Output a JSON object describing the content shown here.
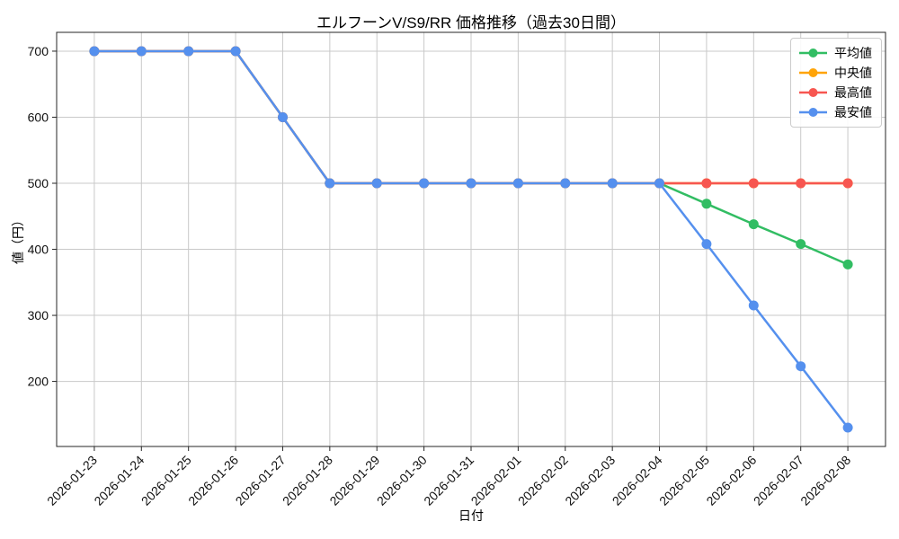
{
  "chart_data": {
    "type": "line",
    "title": "エルフーンV/S9/RR 価格推移（過去30日間）",
    "xlabel": "日付",
    "ylabel": "値（円）",
    "x": [
      "2026-01-23",
      "2026-01-24",
      "2026-01-25",
      "2026-01-26",
      "2026-01-27",
      "2026-01-28",
      "2026-01-29",
      "2026-01-30",
      "2026-01-31",
      "2026-02-01",
      "2026-02-02",
      "2026-02-03",
      "2026-02-04",
      "2026-02-05",
      "2026-02-06",
      "2026-02-07",
      "2026-02-08"
    ],
    "series": [
      {
        "key": "average",
        "name": "平均値",
        "color": "#32bd63",
        "values": [
          700,
          700,
          700,
          700,
          600,
          500,
          500,
          500,
          500,
          500,
          500,
          500,
          500,
          469,
          438,
          408,
          377
        ]
      },
      {
        "key": "median",
        "name": "中央値",
        "color": "#ffa408",
        "values": [
          700,
          700,
          700,
          700,
          600,
          500,
          500,
          500,
          500,
          500,
          500,
          500,
          500,
          500,
          500,
          500,
          500
        ]
      },
      {
        "key": "max",
        "name": "最高値",
        "color": "#f75650",
        "values": [
          700,
          700,
          700,
          700,
          600,
          500,
          500,
          500,
          500,
          500,
          500,
          500,
          500,
          500,
          500,
          500,
          500
        ]
      },
      {
        "key": "min",
        "name": "最安値",
        "color": "#5590ee",
        "values": [
          700,
          700,
          700,
          700,
          600,
          500,
          500,
          500,
          500,
          500,
          500,
          500,
          500,
          408,
          315,
          223,
          130
        ]
      }
    ],
    "y_ticks": [
      200,
      300,
      400,
      500,
      600,
      700
    ],
    "ylim": [
      101.5,
      728.5
    ],
    "grid": true,
    "legend_position": "upper right",
    "marker": "circle",
    "colors": {
      "grid": "#c9c9c9",
      "spine": "#262626",
      "tick_text": "#111111",
      "background": "#ffffff"
    }
  }
}
